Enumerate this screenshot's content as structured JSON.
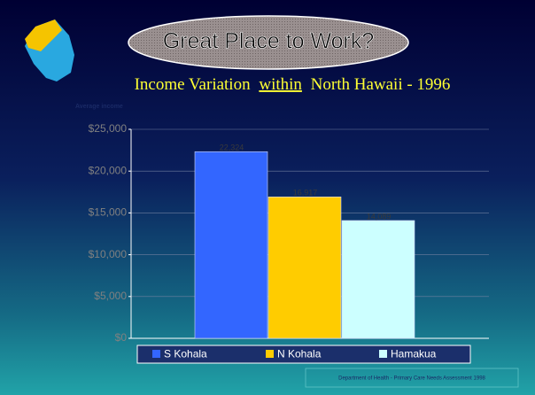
{
  "chart_data": {
    "type": "bar",
    "title": "Great Place to Work?",
    "subtitle": {
      "before": "Income Variation",
      "underlined": "within",
      "after": "North Hawaii - 1996"
    },
    "y_label": "Average income",
    "series": [
      {
        "name": "S Kohala",
        "color": "#3366ff",
        "values": [
          22324
        ],
        "value_labels": [
          "22,324"
        ]
      },
      {
        "name": "N Kohala",
        "color": "#ffcc00",
        "values": [
          16917
        ],
        "value_labels": [
          "16,917"
        ]
      },
      {
        "name": "Hamakua",
        "color": "#ccffff",
        "values": [
          14089
        ],
        "value_labels": [
          "14,089"
        ]
      }
    ],
    "ylim": [
      0,
      25000
    ],
    "yticks": [
      {
        "value": 0,
        "label": "$0"
      },
      {
        "value": 5000,
        "label": "$5,000"
      },
      {
        "value": 10000,
        "label": "$10,000"
      },
      {
        "value": 15000,
        "label": "$15,000"
      },
      {
        "value": 20000,
        "label": "$20,000"
      },
      {
        "value": 25000,
        "label": "$25,000"
      }
    ],
    "grid": true,
    "legend": "bottom",
    "source": "Department of Health - Primary Care Needs Assessment 1998"
  }
}
